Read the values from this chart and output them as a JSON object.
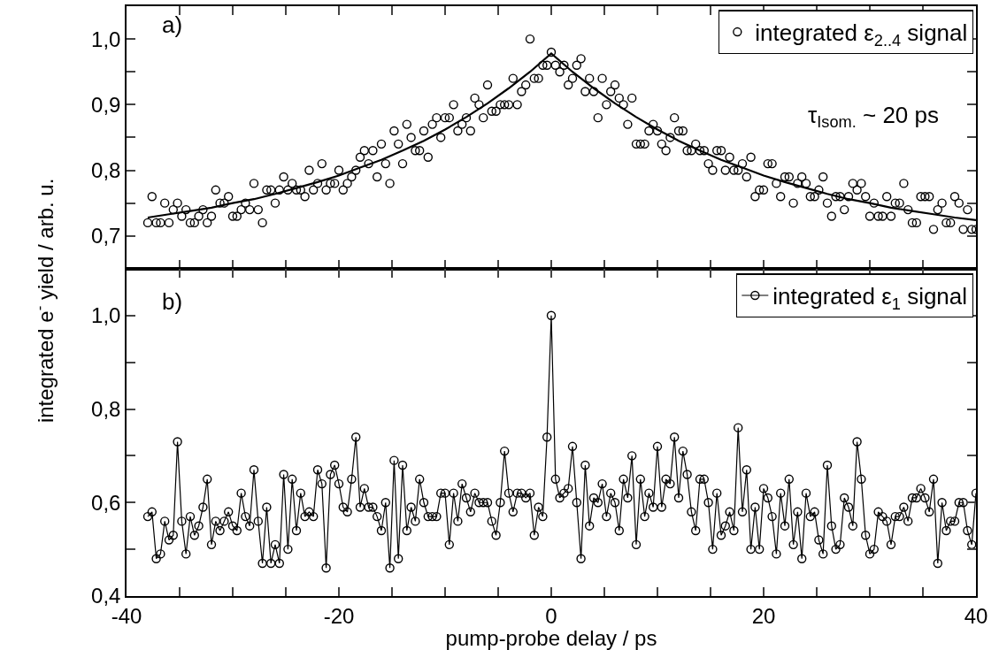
{
  "chart_data": [
    {
      "type": "scatter",
      "ylabel": "integrated e$^{-}$ yield / arb. u.",
      "annotations": [
        "a)",
        "τ$_{Isom.}$ ~ 20 ps"
      ],
      "xlim": [
        -40,
        40
      ],
      "xticks": [
        {
          "value": -40,
          "label": null
        },
        {
          "value": -35,
          "label": null
        },
        {
          "value": -30,
          "label": null
        },
        {
          "value": -25,
          "label": null
        },
        {
          "value": -20,
          "label": null
        },
        {
          "value": -15,
          "label": null
        },
        {
          "value": -10,
          "label": null
        },
        {
          "value": -5,
          "label": null
        },
        {
          "value": 0,
          "label": null
        },
        {
          "value": 5,
          "label": null
        },
        {
          "value": 10,
          "label": null
        },
        {
          "value": 15,
          "label": null
        },
        {
          "value": 20,
          "label": null
        },
        {
          "value": 25,
          "label": null
        },
        {
          "value": 30,
          "label": null
        },
        {
          "value": 35,
          "label": null
        },
        {
          "value": 40,
          "label": null
        }
      ],
      "ylim": [
        0.65,
        1.05
      ],
      "yticks": [
        {
          "value": 0.7,
          "label": "0,7"
        },
        {
          "value": 0.75,
          "label": null
        },
        {
          "value": 0.8,
          "label": "0,8"
        },
        {
          "value": 0.85,
          "label": null
        },
        {
          "value": 0.9,
          "label": "0,9"
        },
        {
          "value": 0.95,
          "label": null
        },
        {
          "value": 1.0,
          "label": "1,0"
        }
      ],
      "tick_labels": "y",
      "legend": "top right",
      "series": [
        {
          "name": "integrated ε$_{2..4}$ signal",
          "type": "scatter",
          "marker": "circle",
          "color": "#000000",
          "x": [
            -38.0,
            -37.6,
            -37.2,
            -36.8,
            -36.4,
            -36.0,
            -35.6,
            -35.2,
            -34.8,
            -34.4,
            -34.0,
            -33.6,
            -33.2,
            -32.8,
            -32.4,
            -32.0,
            -31.6,
            -31.2,
            -30.8,
            -30.4,
            -30.0,
            -29.6,
            -29.2,
            -28.8,
            -28.4,
            -28.0,
            -27.6,
            -27.2,
            -26.8,
            -26.4,
            -26.0,
            -25.6,
            -25.2,
            -24.8,
            -24.4,
            -24.0,
            -23.6,
            -23.2,
            -22.8,
            -22.4,
            -22.0,
            -21.6,
            -21.2,
            -20.8,
            -20.4,
            -20.0,
            -19.6,
            -19.2,
            -18.8,
            -18.4,
            -18.0,
            -17.6,
            -17.2,
            -16.8,
            -16.4,
            -16.0,
            -15.6,
            -15.2,
            -14.8,
            -14.4,
            -14.0,
            -13.6,
            -13.2,
            -12.8,
            -12.4,
            -12.0,
            -11.6,
            -11.2,
            -10.8,
            -10.4,
            -10.0,
            -9.6,
            -9.2,
            -8.8,
            -8.4,
            -8.0,
            -7.6,
            -7.2,
            -6.8,
            -6.4,
            -6.0,
            -5.6,
            -5.2,
            -4.8,
            -4.4,
            -4.0,
            -3.6,
            -3.2,
            -2.8,
            -2.4,
            -2.0,
            -1.6,
            -1.2,
            -0.8,
            -0.4,
            0.0,
            0.4,
            0.8,
            1.2,
            1.6,
            2.0,
            2.4,
            2.8,
            3.2,
            3.6,
            4.0,
            4.4,
            4.8,
            5.2,
            5.6,
            6.0,
            6.4,
            6.8,
            7.2,
            7.6,
            8.0,
            8.4,
            8.8,
            9.2,
            9.6,
            10.0,
            10.4,
            10.8,
            11.2,
            11.6,
            12.0,
            12.4,
            12.8,
            13.2,
            13.6,
            14.0,
            14.4,
            14.8,
            15.2,
            15.6,
            16.0,
            16.4,
            16.8,
            17.2,
            17.6,
            18.0,
            18.4,
            18.8,
            19.2,
            19.6,
            20.0,
            20.4,
            20.8,
            21.2,
            21.6,
            22.0,
            22.4,
            22.8,
            23.2,
            23.6,
            24.0,
            24.4,
            24.8,
            25.2,
            25.6,
            26.0,
            26.4,
            26.8,
            27.2,
            27.6,
            28.0,
            28.4,
            28.8,
            29.2,
            29.6,
            30.0,
            30.4,
            30.8,
            31.2,
            31.6,
            32.0,
            32.4,
            32.8,
            33.2,
            33.6,
            34.0,
            34.4,
            34.8,
            35.2,
            35.6,
            36.0,
            36.4,
            36.8,
            37.2,
            37.6,
            38.0,
            38.4,
            38.8,
            39.2,
            39.6,
            40.0
          ],
          "values": [
            0.72,
            0.76,
            0.72,
            0.72,
            0.75,
            0.72,
            0.74,
            0.75,
            0.73,
            0.74,
            0.72,
            0.72,
            0.73,
            0.74,
            0.72,
            0.73,
            0.77,
            0.75,
            0.75,
            0.76,
            0.73,
            0.73,
            0.74,
            0.75,
            0.74,
            0.78,
            0.74,
            0.72,
            0.77,
            0.77,
            0.75,
            0.77,
            0.79,
            0.77,
            0.78,
            0.77,
            0.77,
            0.76,
            0.8,
            0.77,
            0.78,
            0.81,
            0.77,
            0.78,
            0.78,
            0.8,
            0.77,
            0.78,
            0.79,
            0.8,
            0.82,
            0.83,
            0.81,
            0.83,
            0.79,
            0.84,
            0.81,
            0.78,
            0.86,
            0.84,
            0.81,
            0.87,
            0.85,
            0.83,
            0.83,
            0.86,
            0.82,
            0.87,
            0.88,
            0.85,
            0.88,
            0.88,
            0.9,
            0.86,
            0.87,
            0.88,
            0.86,
            0.91,
            0.9,
            0.88,
            0.93,
            0.89,
            0.89,
            0.9,
            0.9,
            0.9,
            0.94,
            0.9,
            0.92,
            0.93,
            1.0,
            0.94,
            0.94,
            0.96,
            0.96,
            0.98,
            0.96,
            0.95,
            0.96,
            0.93,
            0.94,
            0.96,
            0.97,
            0.92,
            0.94,
            0.92,
            0.88,
            0.94,
            0.9,
            0.92,
            0.93,
            0.91,
            0.9,
            0.87,
            0.91,
            0.84,
            0.84,
            0.84,
            0.86,
            0.87,
            0.86,
            0.84,
            0.83,
            0.85,
            0.88,
            0.86,
            0.86,
            0.83,
            0.83,
            0.84,
            0.83,
            0.83,
            0.81,
            0.8,
            0.83,
            0.83,
            0.8,
            0.82,
            0.8,
            0.8,
            0.81,
            0.79,
            0.82,
            0.76,
            0.77,
            0.77,
            0.81,
            0.81,
            0.78,
            0.76,
            0.79,
            0.79,
            0.75,
            0.78,
            0.79,
            0.78,
            0.76,
            0.76,
            0.77,
            0.79,
            0.75,
            0.73,
            0.76,
            0.76,
            0.74,
            0.76,
            0.78,
            0.77,
            0.78,
            0.76,
            0.73,
            0.75,
            0.73,
            0.73,
            0.76,
            0.73,
            0.75,
            0.75,
            0.78,
            0.74,
            0.72,
            0.72,
            0.76,
            0.76,
            0.76,
            0.71,
            0.74,
            0.75,
            0.72,
            0.72,
            0.76,
            0.75,
            0.71,
            0.74,
            0.71,
            0.71
          ]
        },
        {
          "type": "line",
          "marker": "none",
          "line_style": "solid",
          "color": "#000000",
          "x": [
            -38,
            -36,
            -34,
            -32,
            -30,
            -28,
            -26,
            -24,
            -22,
            -20,
            -18,
            -16,
            -14,
            -12,
            -10,
            -8,
            -6,
            -4,
            -2,
            0,
            2,
            4,
            6,
            8,
            10,
            12,
            14,
            16,
            18,
            20,
            22,
            24,
            26,
            28,
            30,
            32,
            34,
            36,
            38,
            40
          ],
          "values": [
            0.728,
            0.733,
            0.738,
            0.743,
            0.75,
            0.756,
            0.764,
            0.773,
            0.782,
            0.792,
            0.804,
            0.816,
            0.83,
            0.845,
            0.862,
            0.881,
            0.902,
            0.925,
            0.95,
            0.978,
            0.95,
            0.925,
            0.902,
            0.881,
            0.862,
            0.845,
            0.83,
            0.816,
            0.804,
            0.792,
            0.782,
            0.773,
            0.764,
            0.756,
            0.75,
            0.743,
            0.738,
            0.733,
            0.728,
            0.724
          ]
        }
      ]
    },
    {
      "type": "line",
      "xlabel": "pump-probe delay / ps",
      "annotations": [
        "b)"
      ],
      "xlim": [
        -40,
        40
      ],
      "xticks": [
        -40,
        {
          "value": -35,
          "label": null
        },
        {
          "value": -30,
          "label": null
        },
        {
          "value": -25,
          "label": null
        },
        -20,
        {
          "value": -15,
          "label": null
        },
        {
          "value": -10,
          "label": null
        },
        {
          "value": -5,
          "label": null
        },
        0,
        {
          "value": 5,
          "label": null
        },
        {
          "value": 10,
          "label": null
        },
        {
          "value": 15,
          "label": null
        },
        20,
        {
          "value": 25,
          "label": null
        },
        {
          "value": 30,
          "label": null
        },
        {
          "value": 35,
          "label": null
        },
        40
      ],
      "ylim": [
        0.4,
        1.1
      ],
      "yticks": [
        {
          "value": 0.4,
          "label": "0,4"
        },
        {
          "value": 0.5,
          "label": null
        },
        {
          "value": 0.6,
          "label": "0,6"
        },
        {
          "value": 0.7,
          "label": null
        },
        {
          "value": 0.8,
          "label": "0,8"
        },
        {
          "value": 0.9,
          "label": null
        },
        {
          "value": 1.0,
          "label": "1,0"
        }
      ],
      "legend": "top right",
      "marker": "circle",
      "line_style": "solid",
      "series": [
        {
          "name": "integrated ε$_{1}$ signal",
          "color": "#000000",
          "x": [
            -38.0,
            -37.6,
            -37.2,
            -36.8,
            -36.4,
            -36.0,
            -35.6,
            -35.2,
            -34.8,
            -34.4,
            -34.0,
            -33.6,
            -33.2,
            -32.8,
            -32.4,
            -32.0,
            -31.6,
            -31.2,
            -30.8,
            -30.4,
            -30.0,
            -29.6,
            -29.2,
            -28.8,
            -28.4,
            -28.0,
            -27.6,
            -27.2,
            -26.8,
            -26.4,
            -26.0,
            -25.6,
            -25.2,
            -24.8,
            -24.4,
            -24.0,
            -23.6,
            -23.2,
            -22.8,
            -22.4,
            -22.0,
            -21.6,
            -21.2,
            -20.8,
            -20.4,
            -20.0,
            -19.6,
            -19.2,
            -18.8,
            -18.4,
            -18.0,
            -17.6,
            -17.2,
            -16.8,
            -16.4,
            -16.0,
            -15.6,
            -15.2,
            -14.8,
            -14.4,
            -14.0,
            -13.6,
            -13.2,
            -12.8,
            -12.4,
            -12.0,
            -11.6,
            -11.2,
            -10.8,
            -10.4,
            -10.0,
            -9.6,
            -9.2,
            -8.8,
            -8.4,
            -8.0,
            -7.6,
            -7.2,
            -6.8,
            -6.4,
            -6.0,
            -5.6,
            -5.2,
            -4.8,
            -4.4,
            -4.0,
            -3.6,
            -3.2,
            -2.8,
            -2.4,
            -2.0,
            -1.6,
            -1.2,
            -0.8,
            -0.4,
            0.0,
            0.4,
            0.8,
            1.2,
            1.6,
            2.0,
            2.4,
            2.8,
            3.2,
            3.6,
            4.0,
            4.4,
            4.8,
            5.2,
            5.6,
            6.0,
            6.4,
            6.8,
            7.2,
            7.6,
            8.0,
            8.4,
            8.8,
            9.2,
            9.6,
            10.0,
            10.4,
            10.8,
            11.2,
            11.6,
            12.0,
            12.4,
            12.8,
            13.2,
            13.6,
            14.0,
            14.4,
            14.8,
            15.2,
            15.6,
            16.0,
            16.4,
            16.8,
            17.2,
            17.6,
            18.0,
            18.4,
            18.8,
            19.2,
            19.6,
            20.0,
            20.4,
            20.8,
            21.2,
            21.6,
            22.0,
            22.4,
            22.8,
            23.2,
            23.6,
            24.0,
            24.4,
            24.8,
            25.2,
            25.6,
            26.0,
            26.4,
            26.8,
            27.2,
            27.6,
            28.0,
            28.4,
            28.8,
            29.2,
            29.6,
            30.0,
            30.4,
            30.8,
            31.2,
            31.6,
            32.0,
            32.4,
            32.8,
            33.2,
            33.6,
            34.0,
            34.4,
            34.8,
            35.2,
            35.6,
            36.0,
            36.4,
            36.8,
            37.2,
            37.6,
            38.0,
            38.4,
            38.8,
            39.2,
            39.6,
            40.0
          ],
          "values": [
            0.57,
            0.58,
            0.48,
            0.49,
            0.56,
            0.52,
            0.53,
            0.73,
            0.56,
            0.49,
            0.57,
            0.53,
            0.55,
            0.59,
            0.65,
            0.51,
            0.56,
            0.54,
            0.56,
            0.58,
            0.55,
            0.54,
            0.62,
            0.57,
            0.55,
            0.67,
            0.56,
            0.47,
            0.59,
            0.47,
            0.51,
            0.47,
            0.66,
            0.5,
            0.65,
            0.54,
            0.62,
            0.57,
            0.58,
            0.57,
            0.67,
            0.64,
            0.46,
            0.66,
            0.68,
            0.64,
            0.59,
            0.58,
            0.65,
            0.74,
            0.59,
            0.63,
            0.59,
            0.59,
            0.57,
            0.54,
            0.6,
            0.46,
            0.69,
            0.48,
            0.68,
            0.54,
            0.59,
            0.56,
            0.65,
            0.6,
            0.57,
            0.57,
            0.57,
            0.62,
            0.62,
            0.51,
            0.62,
            0.56,
            0.64,
            0.61,
            0.58,
            0.62,
            0.6,
            0.6,
            0.6,
            0.56,
            0.53,
            0.6,
            0.71,
            0.62,
            0.58,
            0.62,
            0.62,
            0.61,
            0.62,
            0.53,
            0.59,
            0.57,
            0.74,
            1.0,
            0.65,
            0.61,
            0.62,
            0.63,
            0.72,
            0.6,
            0.48,
            0.68,
            0.55,
            0.61,
            0.6,
            0.64,
            0.57,
            0.62,
            0.6,
            0.54,
            0.65,
            0.61,
            0.7,
            0.51,
            0.65,
            0.57,
            0.62,
            0.59,
            0.72,
            0.59,
            0.65,
            0.64,
            0.74,
            0.61,
            0.71,
            0.66,
            0.58,
            0.54,
            0.65,
            0.65,
            0.6,
            0.5,
            0.62,
            0.53,
            0.55,
            0.58,
            0.54,
            0.76,
            0.58,
            0.67,
            0.5,
            0.59,
            0.5,
            0.63,
            0.61,
            0.57,
            0.49,
            0.62,
            0.55,
            0.65,
            0.51,
            0.58,
            0.48,
            0.62,
            0.57,
            0.58,
            0.52,
            0.49,
            0.68,
            0.55,
            0.5,
            0.51,
            0.61,
            0.59,
            0.55,
            0.73,
            0.65,
            0.53,
            0.49,
            0.5,
            0.58,
            0.57,
            0.56,
            0.51,
            0.57,
            0.57,
            0.59,
            0.56,
            0.61,
            0.61,
            0.63,
            0.61,
            0.58,
            0.65,
            0.47,
            0.6,
            0.54,
            0.56,
            0.56,
            0.6,
            0.6,
            0.54,
            0.51,
            0.62
          ]
        }
      ]
    }
  ]
}
